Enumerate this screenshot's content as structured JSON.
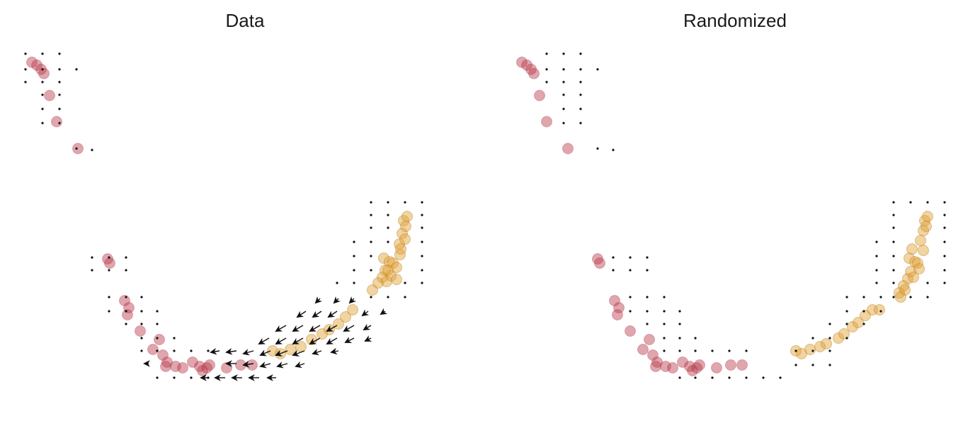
{
  "chart_data": [
    {
      "type": "scatter",
      "title": "Data",
      "xlabel": "",
      "ylabel": "",
      "axes_visible": false,
      "grid": false,
      "colors": {
        "early": "#b83a4b",
        "late": "#e0a030",
        "grid_dot": "#111111",
        "arrow": "#111111"
      },
      "cells_early": [
        [
          45,
          88
        ],
        [
          52,
          92
        ],
        [
          58,
          98
        ],
        [
          62,
          104
        ],
        [
          70,
          135
        ],
        [
          80,
          172
        ],
        [
          110,
          210
        ],
        [
          152,
          366
        ],
        [
          155,
          372
        ],
        [
          176,
          425
        ],
        [
          182,
          435
        ],
        [
          180,
          445
        ],
        [
          198,
          468
        ],
        [
          225,
          480
        ],
        [
          216,
          494
        ],
        [
          230,
          502
        ],
        [
          236,
          512
        ],
        [
          234,
          518
        ],
        [
          248,
          518
        ],
        [
          258,
          520
        ],
        [
          272,
          512
        ],
        [
          282,
          518
        ],
        [
          292,
          520
        ],
        [
          286,
          524
        ],
        [
          296,
          516
        ],
        [
          320,
          520
        ],
        [
          340,
          516
        ],
        [
          356,
          516
        ]
      ],
      "cells_late": [
        [
          385,
          496
        ],
        [
          396,
          500
        ],
        [
          410,
          494
        ],
        [
          425,
          490
        ],
        [
          440,
          480
        ],
        [
          455,
          472
        ],
        [
          465,
          466
        ],
        [
          478,
          458
        ],
        [
          488,
          448
        ],
        [
          498,
          438
        ],
        [
          526,
          410
        ],
        [
          534,
          400
        ],
        [
          540,
          392
        ],
        [
          544,
          382
        ],
        [
          542,
          365
        ],
        [
          550,
          370
        ],
        [
          555,
          372
        ],
        [
          552,
          390
        ],
        [
          560,
          378
        ],
        [
          565,
          360
        ],
        [
          564,
          345
        ],
        [
          568,
          330
        ],
        [
          570,
          312
        ],
        [
          575,
          306
        ],
        [
          573,
          320
        ],
        [
          572,
          338
        ],
        [
          566,
          352
        ],
        [
          560,
          395
        ],
        [
          548,
          382
        ],
        [
          546,
          398
        ]
      ],
      "grid_dots": [
        [
          36,
          76
        ],
        [
          60,
          76
        ],
        [
          84,
          76
        ],
        [
          36,
          98
        ],
        [
          60,
          98
        ],
        [
          84,
          98
        ],
        [
          108,
          98
        ],
        [
          36,
          116
        ],
        [
          60,
          116
        ],
        [
          84,
          116
        ],
        [
          60,
          134
        ],
        [
          84,
          134
        ],
        [
          60,
          154
        ],
        [
          84,
          154
        ],
        [
          60,
          174
        ],
        [
          84,
          174
        ],
        [
          108,
          210
        ],
        [
          130,
          212
        ],
        [
          130,
          364
        ],
        [
          154,
          364
        ],
        [
          178,
          364
        ],
        [
          130,
          382
        ],
        [
          154,
          382
        ],
        [
          178,
          382
        ],
        [
          154,
          420
        ],
        [
          178,
          420
        ],
        [
          200,
          420
        ],
        [
          154,
          440
        ],
        [
          178,
          440
        ],
        [
          200,
          440
        ],
        [
          222,
          440
        ],
        [
          178,
          458
        ],
        [
          200,
          458
        ],
        [
          222,
          458
        ],
        [
          200,
          478
        ],
        [
          222,
          478
        ],
        [
          246,
          478
        ],
        [
          200,
          496
        ],
        [
          222,
          496
        ],
        [
          246,
          496
        ],
        [
          270,
          496
        ],
        [
          294,
          496
        ],
        [
          222,
          534
        ],
        [
          246,
          534
        ],
        [
          270,
          534
        ],
        [
          294,
          534
        ],
        [
          524,
          286
        ],
        [
          548,
          286
        ],
        [
          572,
          286
        ],
        [
          596,
          286
        ],
        [
          524,
          304
        ],
        [
          548,
          304
        ],
        [
          596,
          304
        ],
        [
          524,
          322
        ],
        [
          548,
          322
        ],
        [
          596,
          322
        ],
        [
          500,
          342
        ],
        [
          524,
          342
        ],
        [
          548,
          342
        ],
        [
          596,
          342
        ],
        [
          500,
          362
        ],
        [
          524,
          362
        ],
        [
          596,
          362
        ],
        [
          500,
          382
        ],
        [
          524,
          382
        ],
        [
          596,
          382
        ],
        [
          476,
          400
        ],
        [
          500,
          400
        ],
        [
          572,
          400
        ],
        [
          596,
          400
        ],
        [
          524,
          420
        ],
        [
          548,
          420
        ],
        [
          572,
          420
        ]
      ],
      "arrows": [
        [
          452,
          422,
          -6,
          6
        ],
        [
          478,
          422,
          -6,
          6
        ],
        [
          500,
          422,
          -6,
          6
        ],
        [
          432,
          440,
          -12,
          8
        ],
        [
          454,
          440,
          -12,
          8
        ],
        [
          476,
          440,
          -12,
          8
        ],
        [
          520,
          440,
          -8,
          6
        ],
        [
          544,
          440,
          -6,
          4
        ],
        [
          404,
          460,
          -14,
          8
        ],
        [
          428,
          460,
          -14,
          8
        ],
        [
          452,
          460,
          -14,
          8
        ],
        [
          476,
          460,
          -14,
          8
        ],
        [
          500,
          460,
          -14,
          8
        ],
        [
          524,
          460,
          -10,
          6
        ],
        [
          380,
          478,
          -14,
          8
        ],
        [
          404,
          478,
          -14,
          8
        ],
        [
          428,
          478,
          -14,
          8
        ],
        [
          452,
          478,
          -14,
          8
        ],
        [
          476,
          478,
          -14,
          8
        ],
        [
          500,
          478,
          -12,
          6
        ],
        [
          524,
          478,
          -8,
          4
        ],
        [
          310,
          496,
          -12,
          2
        ],
        [
          334,
          496,
          -14,
          2
        ],
        [
          358,
          496,
          -14,
          4
        ],
        [
          382,
          496,
          -14,
          6
        ],
        [
          406,
          496,
          -16,
          6
        ],
        [
          430,
          496,
          -16,
          6
        ],
        [
          454,
          496,
          -12,
          4
        ],
        [
          478,
          496,
          -10,
          2
        ],
        [
          210,
          514,
          -6,
          0
        ],
        [
          334,
          514,
          -14,
          0
        ],
        [
          358,
          514,
          -14,
          2
        ],
        [
          382,
          514,
          -14,
          4
        ],
        [
          406,
          514,
          -14,
          4
        ],
        [
          430,
          514,
          -12,
          4
        ],
        [
          294,
          534,
          -10,
          0
        ],
        [
          318,
          534,
          -14,
          0
        ],
        [
          342,
          534,
          -14,
          0
        ],
        [
          366,
          534,
          -14,
          0
        ],
        [
          390,
          534,
          -12,
          0
        ]
      ]
    },
    {
      "type": "scatter",
      "title": "Randomized",
      "xlabel": "",
      "ylabel": "",
      "axes_visible": false,
      "grid": false,
      "colors": {
        "early": "#b83a4b",
        "late": "#e0a030",
        "grid_dot": "#111111"
      },
      "cells_early": [
        [
          45,
          88
        ],
        [
          52,
          92
        ],
        [
          58,
          98
        ],
        [
          62,
          104
        ],
        [
          70,
          135
        ],
        [
          80,
          172
        ],
        [
          110,
          210
        ],
        [
          152,
          366
        ],
        [
          155,
          372
        ],
        [
          176,
          425
        ],
        [
          182,
          435
        ],
        [
          180,
          445
        ],
        [
          198,
          468
        ],
        [
          225,
          480
        ],
        [
          216,
          494
        ],
        [
          230,
          502
        ],
        [
          236,
          512
        ],
        [
          234,
          518
        ],
        [
          248,
          518
        ],
        [
          258,
          520
        ],
        [
          272,
          512
        ],
        [
          282,
          518
        ],
        [
          292,
          520
        ],
        [
          286,
          524
        ],
        [
          296,
          516
        ],
        [
          320,
          520
        ],
        [
          340,
          516
        ],
        [
          356,
          516
        ]
      ],
      "cells_late": [
        [
          432,
          496
        ],
        [
          440,
          500
        ],
        [
          452,
          494
        ],
        [
          466,
          490
        ],
        [
          475,
          486
        ],
        [
          492,
          478
        ],
        [
          500,
          472
        ],
        [
          512,
          462
        ],
        [
          520,
          456
        ],
        [
          530,
          446
        ],
        [
          540,
          438
        ],
        [
          550,
          438
        ],
        [
          578,
          414
        ],
        [
          584,
          404
        ],
        [
          590,
          394
        ],
        [
          594,
          384
        ],
        [
          592,
          365
        ],
        [
          600,
          370
        ],
        [
          596,
          352
        ],
        [
          604,
          372
        ],
        [
          608,
          340
        ],
        [
          612,
          326
        ],
        [
          614,
          312
        ],
        [
          618,
          306
        ],
        [
          616,
          320
        ],
        [
          612,
          354
        ],
        [
          606,
          380
        ],
        [
          598,
          392
        ],
        [
          586,
          410
        ],
        [
          580,
          420
        ]
      ],
      "grid_dots": [
        [
          80,
          76
        ],
        [
          104,
          76
        ],
        [
          128,
          76
        ],
        [
          80,
          98
        ],
        [
          104,
          98
        ],
        [
          128,
          98
        ],
        [
          152,
          98
        ],
        [
          80,
          116
        ],
        [
          104,
          116
        ],
        [
          128,
          116
        ],
        [
          104,
          134
        ],
        [
          128,
          134
        ],
        [
          104,
          154
        ],
        [
          128,
          154
        ],
        [
          104,
          174
        ],
        [
          128,
          174
        ],
        [
          152,
          210
        ],
        [
          174,
          212
        ],
        [
          174,
          364
        ],
        [
          198,
          364
        ],
        [
          222,
          364
        ],
        [
          174,
          382
        ],
        [
          198,
          382
        ],
        [
          222,
          382
        ],
        [
          198,
          420
        ],
        [
          222,
          420
        ],
        [
          246,
          420
        ],
        [
          198,
          440
        ],
        [
          222,
          440
        ],
        [
          246,
          440
        ],
        [
          268,
          440
        ],
        [
          222,
          458
        ],
        [
          246,
          458
        ],
        [
          268,
          458
        ],
        [
          246,
          478
        ],
        [
          268,
          478
        ],
        [
          290,
          478
        ],
        [
          246,
          496
        ],
        [
          268,
          496
        ],
        [
          290,
          496
        ],
        [
          314,
          496
        ],
        [
          338,
          496
        ],
        [
          362,
          496
        ],
        [
          268,
          534
        ],
        [
          290,
          534
        ],
        [
          314,
          534
        ],
        [
          338,
          534
        ],
        [
          362,
          534
        ],
        [
          386,
          534
        ],
        [
          410,
          534
        ],
        [
          432,
          496
        ],
        [
          456,
          496
        ],
        [
          480,
          496
        ],
        [
          432,
          516
        ],
        [
          456,
          516
        ],
        [
          480,
          516
        ],
        [
          456,
          478
        ],
        [
          480,
          478
        ],
        [
          504,
          478
        ],
        [
          480,
          458
        ],
        [
          504,
          458
        ],
        [
          528,
          458
        ],
        [
          504,
          440
        ],
        [
          528,
          440
        ],
        [
          552,
          440
        ],
        [
          504,
          420
        ],
        [
          528,
          420
        ],
        [
          552,
          420
        ],
        [
          570,
          286
        ],
        [
          594,
          286
        ],
        [
          618,
          286
        ],
        [
          642,
          286
        ],
        [
          570,
          304
        ],
        [
          642,
          304
        ],
        [
          570,
          322
        ],
        [
          642,
          322
        ],
        [
          546,
          342
        ],
        [
          570,
          342
        ],
        [
          642,
          342
        ],
        [
          546,
          362
        ],
        [
          570,
          362
        ],
        [
          642,
          362
        ],
        [
          546,
          382
        ],
        [
          570,
          382
        ],
        [
          642,
          382
        ],
        [
          546,
          400
        ],
        [
          570,
          400
        ],
        [
          618,
          400
        ],
        [
          642,
          400
        ],
        [
          570,
          420
        ],
        [
          594,
          420
        ],
        [
          618,
          420
        ]
      ],
      "arrows": []
    }
  ]
}
